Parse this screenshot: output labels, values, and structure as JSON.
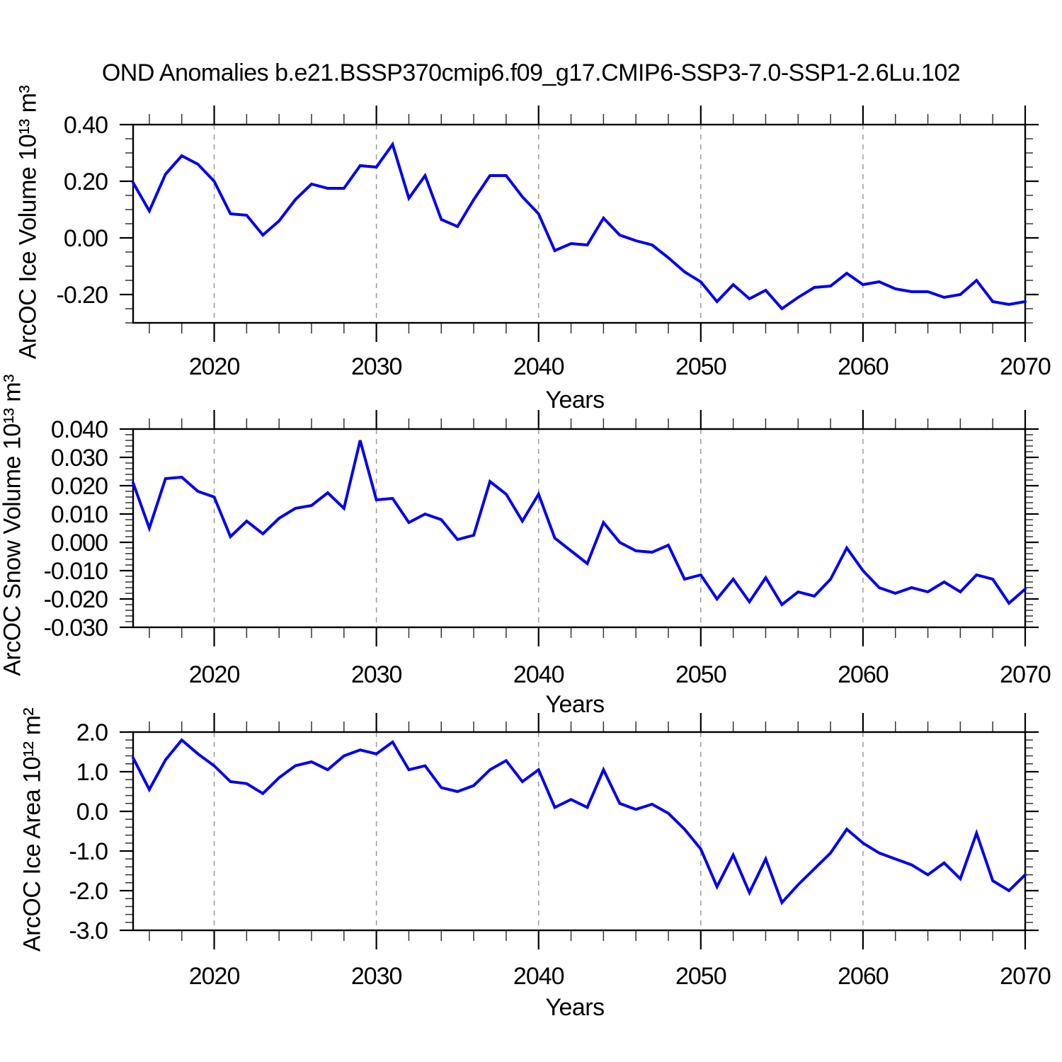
{
  "title": "OND Anomalies b.e21.BSSP370cmip6.f09_g17.CMIP6-SSP3-7.0-SSP1-2.6Lu.102",
  "style": {
    "line_color": "#0000EE",
    "grid_color": "#999999",
    "axis_color": "#000000",
    "background": "#FFFFFF"
  },
  "chart_data": [
    {
      "type": "line",
      "id": "arcoc-ice-volume",
      "ylabel": "ArcOC Ice Volume 10¹³ m³",
      "xlabel": "Years",
      "x": {
        "start": 2015,
        "end": 2070,
        "step": 1
      },
      "values": [
        0.195,
        0.095,
        0.225,
        0.29,
        0.26,
        0.2,
        0.085,
        0.08,
        0.01,
        0.06,
        0.135,
        0.19,
        0.175,
        0.175,
        0.255,
        0.25,
        0.33,
        0.14,
        0.22,
        0.065,
        0.04,
        0.135,
        0.22,
        0.22,
        0.145,
        0.085,
        -0.045,
        -0.02,
        -0.025,
        0.07,
        0.01,
        -0.01,
        -0.025,
        -0.07,
        -0.12,
        -0.155,
        -0.225,
        -0.165,
        -0.215,
        -0.185,
        -0.25,
        -0.21,
        -0.175,
        -0.17,
        -0.125,
        -0.165,
        -0.155,
        -0.18,
        -0.19,
        -0.19,
        -0.21,
        -0.2,
        -0.15,
        -0.225,
        -0.235,
        -0.225
      ],
      "xlim": [
        2015,
        2070
      ],
      "ylim": [
        -0.3,
        0.4
      ],
      "yticks": [
        {
          "v": 0.4,
          "label": "0.40"
        },
        {
          "v": 0.2,
          "label": "0.20"
        },
        {
          "v": 0.0,
          "label": "0.00"
        },
        {
          "v": -0.2,
          "label": "-0.20"
        }
      ],
      "y_minor_step": 0.05,
      "xticks": [
        {
          "v": 2020,
          "label": "2020"
        },
        {
          "v": 2030,
          "label": "2030"
        },
        {
          "v": 2040,
          "label": "2040"
        },
        {
          "v": 2050,
          "label": "2050"
        },
        {
          "v": 2060,
          "label": "2060"
        },
        {
          "v": 2070,
          "label": "2070"
        }
      ],
      "x_minor_step": 2,
      "grid_x": [
        2020,
        2030,
        2040,
        2050,
        2060
      ],
      "grid_style": "vertical-dashed",
      "legend": "none"
    },
    {
      "type": "line",
      "id": "arcoc-snow-volume",
      "ylabel": "ArcOC Snow Volume 10¹³ m³",
      "xlabel": "Years",
      "x": {
        "start": 2015,
        "end": 2070,
        "step": 1
      },
      "values": [
        0.021,
        0.005,
        0.0225,
        0.023,
        0.018,
        0.016,
        0.002,
        0.0075,
        0.003,
        0.0085,
        0.012,
        0.013,
        0.0175,
        0.012,
        0.036,
        0.015,
        0.0155,
        0.007,
        0.01,
        0.008,
        0.001,
        0.0025,
        0.0215,
        0.017,
        0.0075,
        0.017,
        0.0015,
        -0.003,
        -0.0075,
        0.007,
        0.0,
        -0.003,
        -0.0035,
        -0.001,
        -0.013,
        -0.0115,
        -0.02,
        -0.013,
        -0.021,
        -0.0125,
        -0.022,
        -0.0175,
        -0.019,
        -0.013,
        -0.002,
        -0.01,
        -0.016,
        -0.018,
        -0.016,
        -0.0175,
        -0.014,
        -0.0175,
        -0.0115,
        -0.013,
        -0.0215,
        -0.0165
      ],
      "xlim": [
        2015,
        2070
      ],
      "ylim": [
        -0.03,
        0.04
      ],
      "yticks": [
        {
          "v": 0.04,
          "label": "0.040"
        },
        {
          "v": 0.03,
          "label": "0.030"
        },
        {
          "v": 0.02,
          "label": "0.020"
        },
        {
          "v": 0.01,
          "label": "0.010"
        },
        {
          "v": 0.0,
          "label": "0.000"
        },
        {
          "v": -0.01,
          "label": "-0.010"
        },
        {
          "v": -0.02,
          "label": "-0.020"
        },
        {
          "v": -0.03,
          "label": "-0.030"
        }
      ],
      "y_minor_step": 0.002,
      "xticks": [
        {
          "v": 2020,
          "label": "2020"
        },
        {
          "v": 2030,
          "label": "2030"
        },
        {
          "v": 2040,
          "label": "2040"
        },
        {
          "v": 2050,
          "label": "2050"
        },
        {
          "v": 2060,
          "label": "2060"
        },
        {
          "v": 2070,
          "label": "2070"
        }
      ],
      "x_minor_step": 2,
      "grid_x": [
        2020,
        2030,
        2040,
        2050,
        2060
      ],
      "grid_style": "vertical-dashed",
      "legend": "none"
    },
    {
      "type": "line",
      "id": "arcoc-ice-area",
      "ylabel": "ArcOC Ice Area 10¹² m²",
      "xlabel": "Years",
      "x": {
        "start": 2015,
        "end": 2070,
        "step": 1
      },
      "values": [
        1.35,
        0.55,
        1.3,
        1.8,
        1.45,
        1.15,
        0.75,
        0.7,
        0.45,
        0.85,
        1.15,
        1.25,
        1.05,
        1.4,
        1.55,
        1.45,
        1.75,
        1.05,
        1.15,
        0.6,
        0.5,
        0.65,
        1.05,
        1.28,
        0.75,
        1.05,
        0.1,
        0.3,
        0.1,
        1.05,
        0.2,
        0.05,
        0.18,
        -0.05,
        -0.45,
        -0.95,
        -1.9,
        -1.1,
        -2.05,
        -1.2,
        -2.3,
        -1.85,
        -1.45,
        -1.05,
        -0.45,
        -0.8,
        -1.05,
        -1.2,
        -1.35,
        -1.6,
        -1.3,
        -1.7,
        -0.55,
        -1.75,
        -2.0,
        -1.6
      ],
      "xlim": [
        2015,
        2070
      ],
      "ylim": [
        -3.0,
        2.0
      ],
      "yticks": [
        {
          "v": 2.0,
          "label": "2.0"
        },
        {
          "v": 1.0,
          "label": "1.0"
        },
        {
          "v": 0.0,
          "label": "0.0"
        },
        {
          "v": -1.0,
          "label": "-1.0"
        },
        {
          "v": -2.0,
          "label": "-2.0"
        },
        {
          "v": -3.0,
          "label": "-3.0"
        }
      ],
      "y_minor_step": 0.2,
      "xticks": [
        {
          "v": 2020,
          "label": "2020"
        },
        {
          "v": 2030,
          "label": "2030"
        },
        {
          "v": 2040,
          "label": "2040"
        },
        {
          "v": 2050,
          "label": "2050"
        },
        {
          "v": 2060,
          "label": "2060"
        },
        {
          "v": 2070,
          "label": "2070"
        }
      ],
      "x_minor_step": 2,
      "grid_x": [
        2020,
        2030,
        2040,
        2050,
        2060
      ],
      "grid_style": "vertical-dashed",
      "legend": "none"
    }
  ]
}
